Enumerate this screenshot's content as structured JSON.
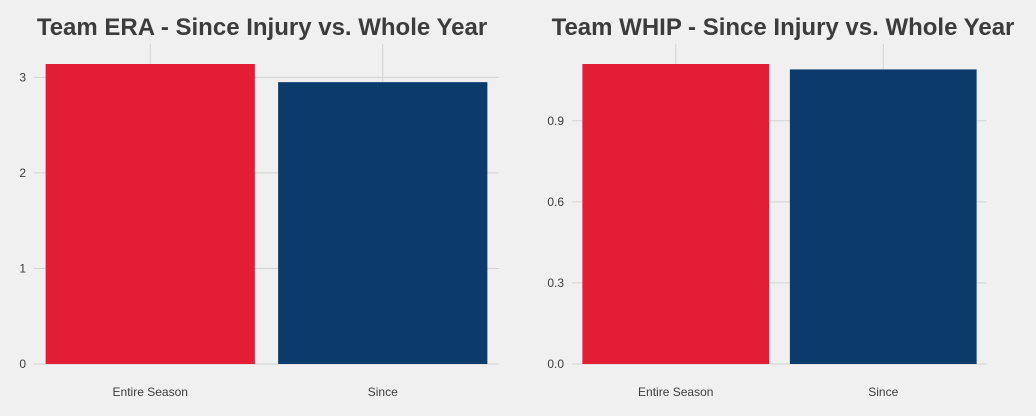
{
  "colors": {
    "background": "#f0f0f0",
    "grid": "#d2d2d2",
    "entire_season": "#e41d36",
    "since": "#0b3b6a",
    "text": "#3c3c3c"
  },
  "chart_data": [
    {
      "type": "bar",
      "title": "Team ERA - Since Injury vs. Whole Year",
      "xlabel": "",
      "ylabel": "",
      "categories": [
        "Entire Season",
        "Since"
      ],
      "values": [
        3.14,
        2.95
      ],
      "ylim": [
        0,
        3.14
      ],
      "yticks": [
        0,
        1,
        2,
        3
      ],
      "ytick_labels": [
        "0",
        "1",
        "2",
        "3"
      ],
      "grid": true,
      "legend": "none"
    },
    {
      "type": "bar",
      "title": "Team WHIP - Since Injury vs. Whole Year",
      "xlabel": "",
      "ylabel": "",
      "categories": [
        "Entire Season",
        "Since"
      ],
      "values": [
        1.11,
        1.09
      ],
      "ylim": [
        0,
        1.11
      ],
      "yticks": [
        0,
        0.3,
        0.6,
        0.9
      ],
      "ytick_labels": [
        "0.0",
        "0.3",
        "0.6",
        "0.9"
      ],
      "grid": true,
      "legend": "none"
    }
  ]
}
